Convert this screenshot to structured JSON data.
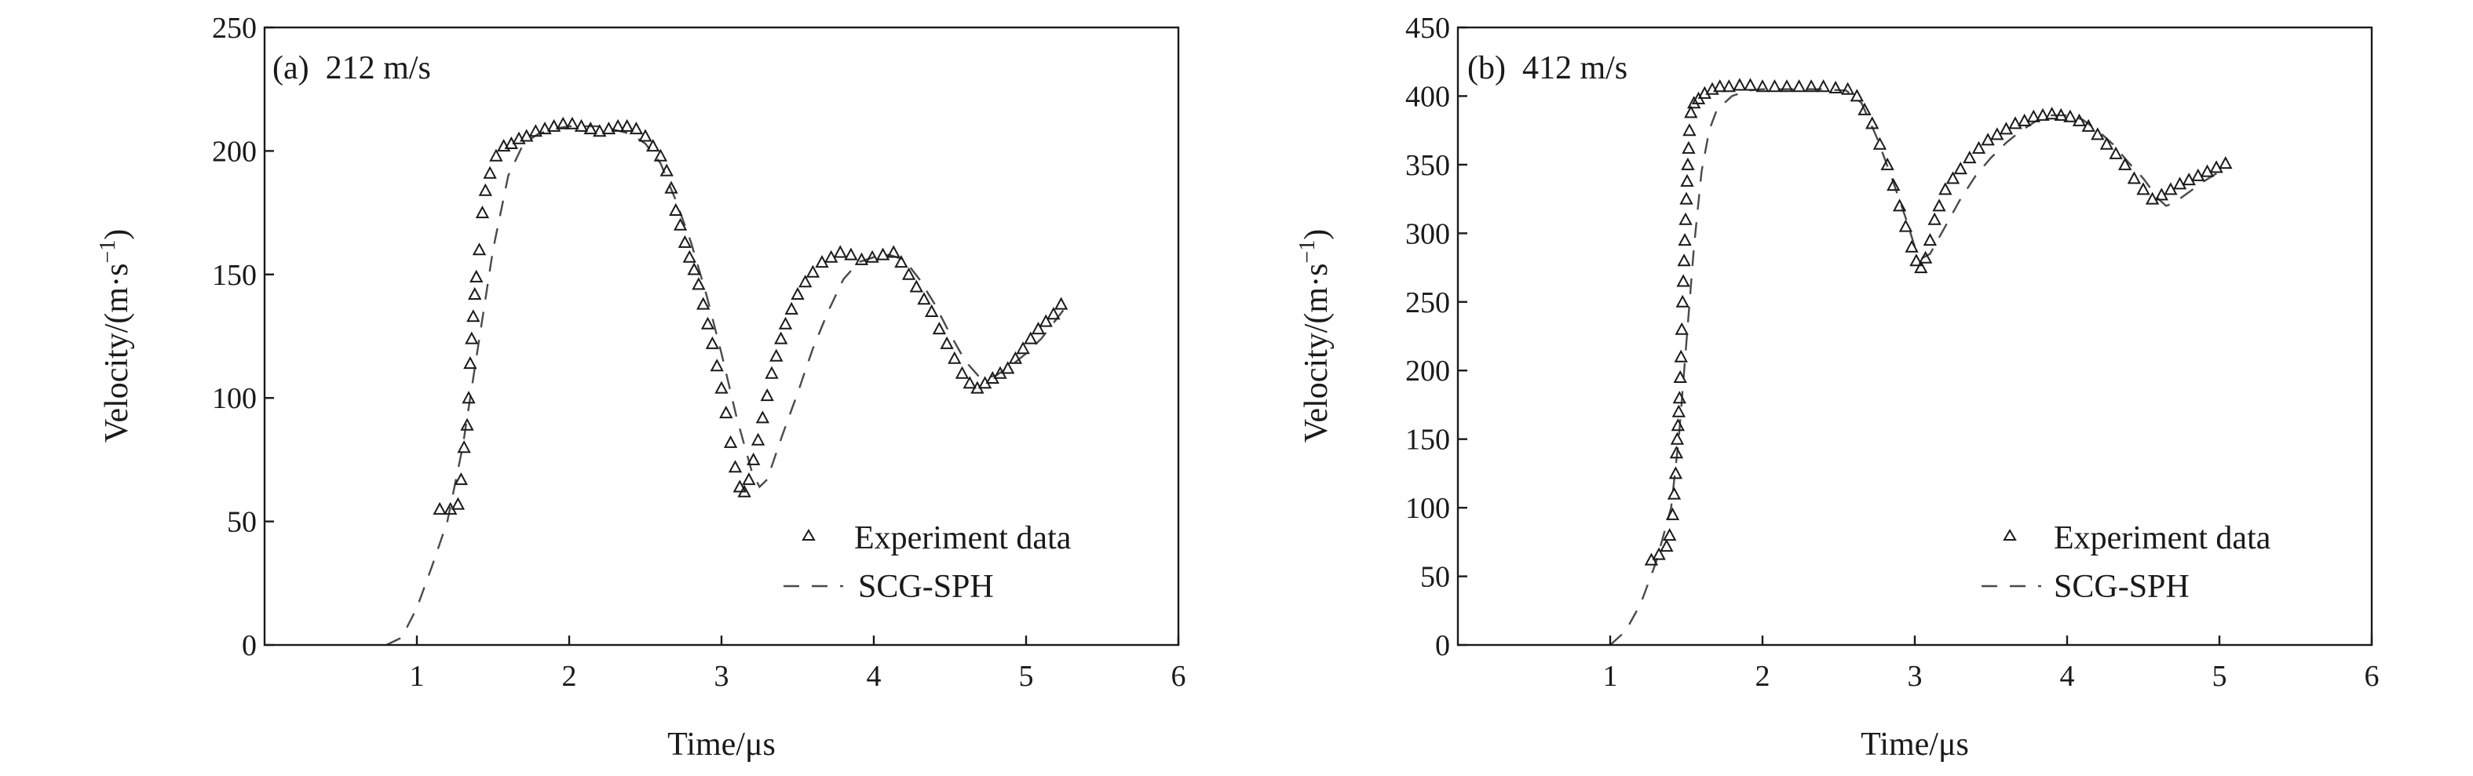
{
  "chart_data": [
    {
      "type": "line",
      "panel_label": "(a)  212 m/s",
      "xlabel": "Time/μs",
      "ylabel_main": "Velocity/(m·s",
      "ylabel_sup": "−1",
      "ylabel_close": ")",
      "xlim": [
        0,
        6
      ],
      "ylim": [
        0,
        250
      ],
      "xticks": [
        1,
        2,
        3,
        4,
        5,
        6
      ],
      "yticks": [
        0,
        50,
        100,
        150,
        200,
        250
      ],
      "legend_position": "bottom-right",
      "series": [
        {
          "name": "Experiment data",
          "marker": "triangle",
          "x": [
            1.15,
            1.22,
            1.27,
            1.29,
            1.31,
            1.33,
            1.34,
            1.35,
            1.36,
            1.37,
            1.38,
            1.39,
            1.41,
            1.43,
            1.45,
            1.48,
            1.52,
            1.57,
            1.62,
            1.67,
            1.72,
            1.78,
            1.84,
            1.9,
            1.96,
            2.02,
            2.08,
            2.14,
            2.2,
            2.26,
            2.32,
            2.38,
            2.44,
            2.5,
            2.55,
            2.6,
            2.64,
            2.67,
            2.7,
            2.73,
            2.76,
            2.79,
            2.82,
            2.85,
            2.88,
            2.91,
            2.94,
            2.97,
            3.0,
            3.03,
            3.06,
            3.09,
            3.12,
            3.15,
            3.18,
            3.21,
            3.24,
            3.27,
            3.3,
            3.33,
            3.36,
            3.39,
            3.42,
            3.46,
            3.5,
            3.55,
            3.6,
            3.66,
            3.72,
            3.78,
            3.85,
            3.92,
            3.99,
            4.06,
            4.13,
            4.18,
            4.23,
            4.28,
            4.33,
            4.38,
            4.43,
            4.48,
            4.53,
            4.58,
            4.63,
            4.68,
            4.73,
            4.78,
            4.83,
            4.88,
            4.93,
            4.98,
            5.03,
            5.08,
            5.13,
            5.18,
            5.23
          ],
          "y": [
            55,
            55,
            57,
            67,
            80,
            89,
            100,
            114,
            124,
            133,
            142,
            149,
            160,
            175,
            184,
            191,
            198,
            202,
            203,
            205,
            206,
            208,
            209,
            210,
            211,
            211,
            210,
            209,
            208,
            209,
            210,
            210,
            209,
            206,
            202,
            198,
            192,
            185,
            176,
            170,
            163,
            157,
            152,
            146,
            138,
            130,
            122,
            113,
            104,
            94,
            82,
            72,
            64,
            62,
            67,
            75,
            83,
            92,
            101,
            110,
            117,
            124,
            130,
            136,
            142,
            147,
            151,
            155,
            157,
            159,
            158,
            156,
            157,
            158,
            159,
            155,
            150,
            145,
            140,
            135,
            128,
            122,
            116,
            110,
            106,
            104,
            106,
            108,
            110,
            112,
            116,
            120,
            124,
            128,
            131,
            134,
            138
          ]
        },
        {
          "name": "SCG-SPH",
          "marker": "dashed",
          "x": [
            0.8,
            0.9,
            1.0,
            1.1,
            1.2,
            1.3,
            1.4,
            1.5,
            1.6,
            1.7,
            1.8,
            1.9,
            2.0,
            2.2,
            2.4,
            2.5,
            2.6,
            2.7,
            2.8,
            2.9,
            3.0,
            3.1,
            3.2,
            3.25,
            3.3,
            3.4,
            3.5,
            3.6,
            3.7,
            3.8,
            3.9,
            4.0,
            4.1,
            4.2,
            4.3,
            4.4,
            4.5,
            4.6,
            4.7,
            4.8,
            4.9,
            5.0,
            5.1,
            5.2,
            5.25
          ],
          "y": [
            0,
            3,
            15,
            32,
            50,
            80,
            120,
            160,
            190,
            203,
            207,
            209,
            210,
            210,
            207,
            203,
            195,
            180,
            163,
            142,
            118,
            92,
            70,
            64,
            67,
            85,
            102,
            120,
            135,
            148,
            155,
            157,
            158,
            156,
            148,
            138,
            126,
            115,
            108,
            109,
            113,
            118,
            124,
            132,
            136
          ]
        }
      ]
    },
    {
      "type": "line",
      "panel_label": "(b)  412 m/s",
      "xlabel": "Time/μs",
      "ylabel_main": "Velocity/(m·s",
      "ylabel_sup": "−1",
      "ylabel_close": ")",
      "xlim": [
        0,
        6
      ],
      "ylim": [
        0,
        450
      ],
      "xticks": [
        1,
        2,
        3,
        4,
        5,
        6
      ],
      "yticks": [
        0,
        50,
        100,
        150,
        200,
        250,
        300,
        350,
        400,
        450
      ],
      "legend_position": "bottom-right",
      "series": [
        {
          "name": "Experiment data",
          "marker": "triangle",
          "x": [
            1.27,
            1.32,
            1.37,
            1.39,
            1.41,
            1.42,
            1.43,
            1.435,
            1.44,
            1.445,
            1.45,
            1.455,
            1.46,
            1.465,
            1.47,
            1.475,
            1.48,
            1.485,
            1.49,
            1.495,
            1.5,
            1.505,
            1.51,
            1.515,
            1.52,
            1.53,
            1.55,
            1.58,
            1.62,
            1.67,
            1.72,
            1.78,
            1.85,
            1.92,
            2.0,
            2.08,
            2.16,
            2.24,
            2.32,
            2.4,
            2.48,
            2.56,
            2.62,
            2.67,
            2.72,
            2.77,
            2.82,
            2.86,
            2.9,
            2.94,
            2.98,
            3.01,
            3.04,
            3.07,
            3.1,
            3.13,
            3.16,
            3.2,
            3.25,
            3.3,
            3.36,
            3.42,
            3.48,
            3.54,
            3.6,
            3.66,
            3.72,
            3.78,
            3.84,
            3.9,
            3.96,
            4.02,
            4.08,
            4.14,
            4.2,
            4.26,
            4.32,
            4.38,
            4.44,
            4.5,
            4.56,
            4.62,
            4.68,
            4.74,
            4.8,
            4.86,
            4.92,
            4.98,
            5.04
          ],
          "y": [
            62,
            66,
            72,
            80,
            95,
            110,
            125,
            140,
            150,
            160,
            170,
            180,
            195,
            210,
            230,
            250,
            265,
            280,
            295,
            310,
            325,
            338,
            350,
            362,
            375,
            388,
            395,
            398,
            402,
            405,
            407,
            407,
            408,
            408,
            407,
            407,
            407,
            407,
            407,
            407,
            406,
            405,
            400,
            390,
            380,
            365,
            350,
            335,
            320,
            305,
            290,
            280,
            275,
            282,
            295,
            310,
            320,
            332,
            340,
            347,
            355,
            362,
            368,
            372,
            376,
            380,
            382,
            385,
            386,
            387,
            386,
            385,
            382,
            378,
            372,
            365,
            358,
            350,
            340,
            332,
            325,
            328,
            332,
            336,
            339,
            342,
            345,
            348,
            351
          ]
        },
        {
          "name": "SCG-SPH",
          "marker": "dashed",
          "x": [
            1.0,
            1.1,
            1.2,
            1.3,
            1.4,
            1.45,
            1.5,
            1.55,
            1.6,
            1.65,
            1.7,
            1.8,
            1.9,
            2.0,
            2.2,
            2.4,
            2.55,
            2.65,
            2.75,
            2.85,
            2.95,
            3.0,
            3.05,
            3.1,
            3.2,
            3.3,
            3.4,
            3.5,
            3.6,
            3.7,
            3.8,
            3.9,
            4.0,
            4.1,
            4.2,
            4.3,
            4.4,
            4.5,
            4.6,
            4.65,
            4.7,
            4.8,
            4.9,
            5.0,
            5.05
          ],
          "y": [
            0,
            10,
            30,
            60,
            100,
            150,
            220,
            290,
            345,
            375,
            390,
            400,
            404,
            405,
            405,
            405,
            404,
            395,
            370,
            340,
            308,
            290,
            282,
            285,
            305,
            325,
            342,
            355,
            366,
            375,
            382,
            386,
            386,
            383,
            375,
            365,
            352,
            340,
            325,
            320,
            322,
            330,
            338,
            345,
            348
          ]
        }
      ]
    }
  ]
}
